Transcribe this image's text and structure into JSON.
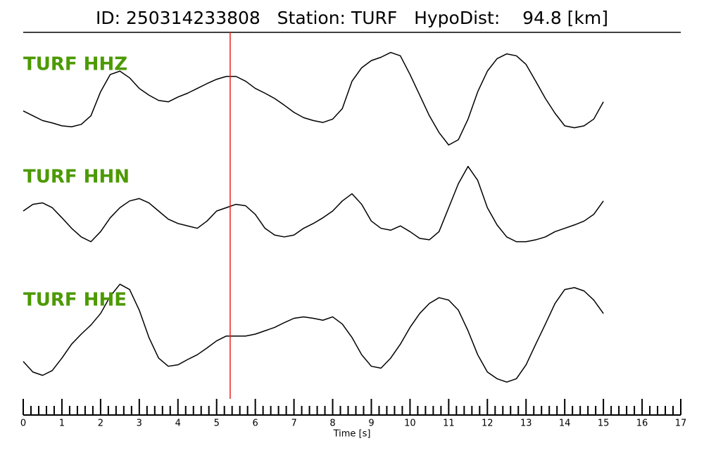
{
  "chart_data": {
    "type": "line",
    "title": "ID: 250314233808   Station: TURF   HypoDist:    94.8 [km]",
    "xlabel": "Time [s]",
    "xlim": [
      0,
      17
    ],
    "xticks": [
      0,
      1,
      2,
      3,
      4,
      5,
      6,
      7,
      8,
      9,
      10,
      11,
      12,
      13,
      14,
      15,
      16,
      17
    ],
    "xminorticks": [
      0.2,
      0.4,
      0.6,
      0.8,
      1.2,
      1.4,
      1.6,
      1.8,
      2.2,
      2.4,
      2.6,
      2.8,
      3.2,
      3.4,
      3.6,
      3.8,
      4.2,
      4.4,
      4.6,
      4.8,
      5.2,
      5.4,
      5.6,
      5.8,
      6.2,
      6.4,
      6.6,
      6.8,
      7.2,
      7.4,
      7.6,
      7.8,
      8.2,
      8.4,
      8.6,
      8.8,
      9.2,
      9.4,
      9.6,
      9.8,
      10.2,
      10.4,
      10.6,
      10.8,
      11.2,
      11.4,
      11.6,
      11.8,
      12.2,
      12.4,
      12.6,
      12.8,
      13.2,
      13.4,
      13.6,
      13.8,
      14.2,
      14.4,
      14.6,
      14.8,
      15.2,
      15.4,
      15.6,
      15.8,
      16.2,
      16.4,
      16.6,
      16.8
    ],
    "ylim": [
      -1.1,
      1.1
    ],
    "marker_x": 5.35,
    "marker_color": "#e8231a",
    "label_color": "#4c9a00",
    "x": [
      0,
      0.25,
      0.5,
      0.75,
      1,
      1.25,
      1.5,
      1.75,
      2,
      2.25,
      2.5,
      2.75,
      3,
      3.25,
      3.5,
      3.75,
      4,
      4.25,
      4.5,
      4.75,
      5,
      5.25,
      5.5,
      5.75,
      6,
      6.25,
      6.5,
      6.75,
      7,
      7.25,
      7.5,
      7.75,
      8,
      8.25,
      8.5,
      8.75,
      9,
      9.25,
      9.5,
      9.75,
      10,
      10.25,
      10.5,
      10.75,
      11,
      11.25,
      11.5,
      11.75,
      12,
      12.25,
      12.5,
      12.75,
      13,
      13.25,
      13.5,
      13.75,
      14,
      14.25,
      14.5,
      14.75,
      15
    ],
    "series": [
      {
        "name": "TURF HHZ",
        "color": "#000000",
        "values": [
          -0.26,
          -0.36,
          -0.46,
          -0.51,
          -0.57,
          -0.59,
          -0.54,
          -0.36,
          0.14,
          0.5,
          0.57,
          0.43,
          0.21,
          0.07,
          -0.04,
          -0.07,
          0.03,
          0.11,
          0.21,
          0.31,
          0.4,
          0.46,
          0.46,
          0.36,
          0.21,
          0.11,
          0,
          -0.14,
          -0.29,
          -0.4,
          -0.46,
          -0.5,
          -0.43,
          -0.21,
          0.36,
          0.64,
          0.79,
          0.86,
          0.96,
          0.89,
          0.5,
          0.07,
          -0.36,
          -0.71,
          -0.97,
          -0.86,
          -0.43,
          0.14,
          0.57,
          0.83,
          0.93,
          0.89,
          0.71,
          0.36,
          0,
          -0.31,
          -0.57,
          -0.61,
          -0.57,
          -0.43,
          -0.07
        ]
      },
      {
        "name": "TURF HHN",
        "color": "#000000",
        "values": [
          0,
          0.14,
          0.17,
          0.07,
          -0.14,
          -0.36,
          -0.54,
          -0.64,
          -0.43,
          -0.14,
          0.07,
          0.21,
          0.26,
          0.17,
          0,
          -0.17,
          -0.26,
          -0.31,
          -0.36,
          -0.21,
          0,
          0.07,
          0.14,
          0.11,
          -0.07,
          -0.36,
          -0.5,
          -0.54,
          -0.5,
          -0.36,
          -0.26,
          -0.14,
          0,
          0.21,
          0.36,
          0.14,
          -0.21,
          -0.36,
          -0.4,
          -0.31,
          -0.43,
          -0.57,
          -0.6,
          -0.43,
          0.07,
          0.57,
          0.93,
          0.64,
          0.07,
          -0.29,
          -0.54,
          -0.64,
          -0.64,
          -0.6,
          -0.54,
          -0.43,
          -0.36,
          -0.29,
          -0.21,
          -0.07,
          0.21
        ]
      },
      {
        "name": "TURF HHE",
        "color": "#000000",
        "values": [
          -0.57,
          -0.79,
          -0.86,
          -0.76,
          -0.5,
          -0.21,
          0,
          0.19,
          0.43,
          0.79,
          1.04,
          0.93,
          0.5,
          -0.07,
          -0.5,
          -0.67,
          -0.64,
          -0.53,
          -0.43,
          -0.29,
          -0.14,
          -0.04,
          -0.04,
          -0.04,
          0,
          0.07,
          0.14,
          0.24,
          0.33,
          0.36,
          0.33,
          0.29,
          0.36,
          0.21,
          -0.07,
          -0.43,
          -0.67,
          -0.71,
          -0.5,
          -0.21,
          0.14,
          0.43,
          0.64,
          0.76,
          0.71,
          0.5,
          0.07,
          -0.43,
          -0.79,
          -0.93,
          -1,
          -0.93,
          -0.64,
          -0.21,
          0.21,
          0.64,
          0.93,
          0.97,
          0.9,
          0.71,
          0.43
        ]
      }
    ]
  }
}
